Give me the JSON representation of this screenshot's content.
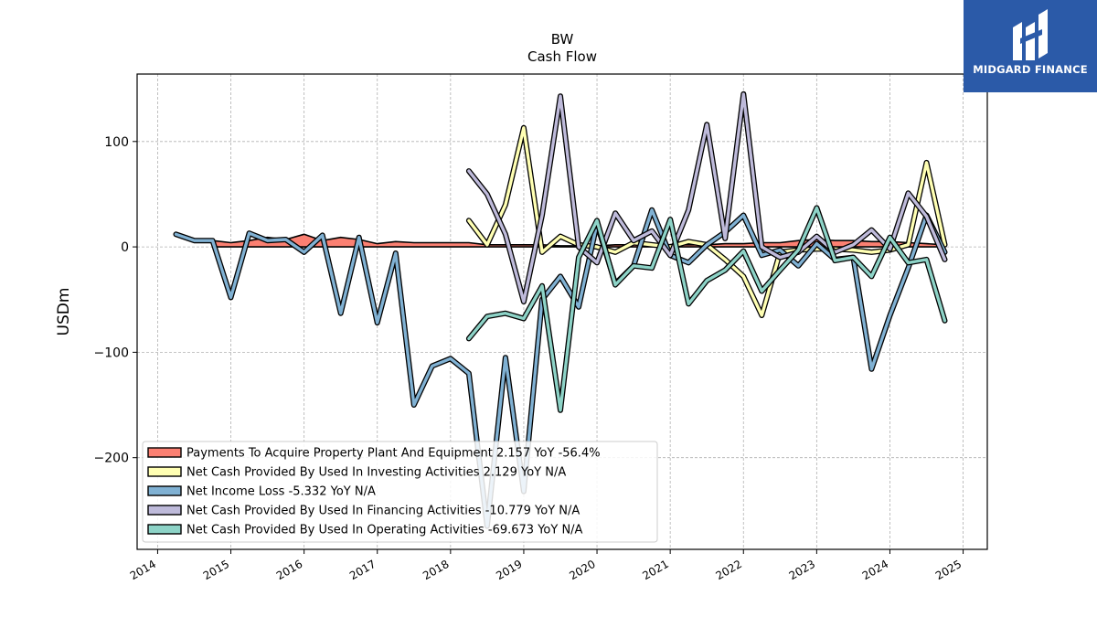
{
  "logo": {
    "text": "MIDGARD FINANCE"
  },
  "chart_data": {
    "type": "line",
    "title": "BW",
    "subtitle": "Cash Flow",
    "ylabel": "USDm",
    "xlabel": "",
    "xlim": [
      2013.72,
      2025.33
    ],
    "ylim": [
      -287,
      164
    ],
    "yticks": [
      100,
      0,
      -100,
      -200
    ],
    "ytick_labels": [
      "100",
      "0",
      "−100",
      "−200"
    ],
    "xticks": [
      2014,
      2015,
      2016,
      2017,
      2018,
      2019,
      2020,
      2021,
      2022,
      2023,
      2024,
      2025
    ],
    "xtick_labels": [
      "2014",
      "2015",
      "2016",
      "2017",
      "2018",
      "2019",
      "2020",
      "2021",
      "2022",
      "2023",
      "2024",
      "2025"
    ],
    "grid": true,
    "legend_position": "lower-left",
    "series": [
      {
        "name": "Payments To Acquire Property Plant And Equipment  2.157 YoY -56.4%",
        "color": "#fb8072",
        "style": "band",
        "x": [
          2014.75,
          2015.0,
          2015.25,
          2015.5,
          2015.75,
          2016.0,
          2016.25,
          2016.5,
          2016.75,
          2017.0,
          2017.25,
          2017.5,
          2017.75,
          2018.0,
          2018.25,
          2018.5,
          2018.75,
          2019.0,
          2019.25,
          2019.5,
          2019.75,
          2020.0,
          2020.25,
          2020.5,
          2020.75,
          2021.0,
          2021.25,
          2021.5,
          2021.75,
          2022.0,
          2022.25,
          2022.5,
          2022.75,
          2023.0,
          2023.25,
          2023.5,
          2023.75,
          2024.0,
          2024.25,
          2024.5,
          2024.75
        ],
        "values": [
          6,
          4,
          6,
          9,
          7,
          12,
          6,
          9,
          7,
          3,
          5,
          4,
          4,
          4,
          4,
          2,
          2,
          2,
          2,
          1,
          1,
          1,
          2,
          2,
          2,
          2,
          2,
          2,
          3,
          3,
          4,
          4,
          6,
          7,
          6,
          6,
          5,
          5,
          4,
          3,
          2
        ]
      },
      {
        "name": "Net Cash Provided By Used In Investing Activities  2.129 YoY N/A",
        "color": "#ffffb3",
        "x": [
          2018.25,
          2018.5,
          2018.75,
          2019.0,
          2019.25,
          2019.5,
          2019.75,
          2020.0,
          2020.25,
          2020.5,
          2020.75,
          2021.0,
          2021.25,
          2021.5,
          2021.75,
          2022.0,
          2022.25,
          2022.5,
          2022.75,
          2023.0,
          2023.25,
          2023.5,
          2023.75,
          2024.0,
          2024.25,
          2024.5,
          2024.75
        ],
        "values": [
          25,
          2,
          40,
          113,
          -5,
          10,
          2,
          0,
          -5,
          4,
          2,
          0,
          5,
          2,
          -12,
          -28,
          -65,
          -5,
          -3,
          -2,
          -2,
          -3,
          -5,
          -3,
          2,
          80,
          2
        ]
      },
      {
        "name": "Net Income Loss  -5.332 YoY N/A",
        "color": "#80b1d3",
        "x": [
          2014.25,
          2014.5,
          2014.75,
          2015.0,
          2015.25,
          2015.5,
          2015.75,
          2016.0,
          2016.25,
          2016.5,
          2016.75,
          2017.0,
          2017.25,
          2017.5,
          2017.75,
          2018.0,
          2018.25,
          2018.5,
          2018.75,
          2019.0,
          2019.25,
          2019.5,
          2019.75,
          2020.0,
          2020.25,
          2020.5,
          2020.75,
          2021.0,
          2021.25,
          2021.5,
          2021.75,
          2022.0,
          2022.25,
          2022.5,
          2022.75,
          2023.0,
          2023.25,
          2023.5,
          2023.75,
          2024.0,
          2024.25,
          2024.5,
          2024.75
        ],
        "values": [
          12,
          6,
          6,
          -48,
          13,
          6,
          7,
          -5,
          11,
          -63,
          9,
          -72,
          -6,
          -150,
          -113,
          -106,
          -120,
          -265,
          -105,
          -232,
          -50,
          -28,
          -57,
          22,
          -35,
          -18,
          35,
          -8,
          -15,
          2,
          14,
          30,
          -8,
          -3,
          -18,
          3,
          -12,
          -10,
          -116,
          -65,
          -20,
          30,
          -5
        ]
      },
      {
        "name": "Net Cash Provided By Used In Financing Activities  -10.779 YoY N/A",
        "color": "#bebada",
        "x": [
          2018.25,
          2018.5,
          2018.75,
          2019.0,
          2019.25,
          2019.5,
          2019.75,
          2020.0,
          2020.25,
          2020.5,
          2020.75,
          2021.0,
          2021.25,
          2021.5,
          2021.75,
          2022.0,
          2022.25,
          2022.5,
          2022.75,
          2023.0,
          2023.25,
          2023.5,
          2023.75,
          2024.0,
          2024.25,
          2024.5,
          2024.75
        ],
        "values": [
          72,
          50,
          12,
          -52,
          30,
          143,
          0,
          -15,
          32,
          6,
          15,
          -8,
          35,
          116,
          8,
          145,
          0,
          -10,
          -5,
          10,
          -5,
          2,
          16,
          -2,
          51,
          29,
          -12
        ]
      },
      {
        "name": "Net Cash Provided By Used In Operating Activities  -69.673 YoY N/A",
        "color": "#8dd3c7",
        "x": [
          2018.25,
          2018.5,
          2018.75,
          2019.0,
          2019.25,
          2019.5,
          2019.75,
          2020.0,
          2020.25,
          2020.5,
          2020.75,
          2021.0,
          2021.25,
          2021.5,
          2021.75,
          2022.0,
          2022.25,
          2022.5,
          2022.75,
          2023.0,
          2023.25,
          2023.5,
          2023.75,
          2024.0,
          2024.25,
          2024.5,
          2024.75
        ],
        "values": [
          -87,
          -66,
          -63,
          -68,
          -37,
          -155,
          -10,
          25,
          -36,
          -18,
          -20,
          26,
          -54,
          -32,
          -22,
          -4,
          -42,
          -22,
          -3,
          37,
          -13,
          -10,
          -28,
          9,
          -15,
          -12,
          -70
        ]
      }
    ]
  }
}
